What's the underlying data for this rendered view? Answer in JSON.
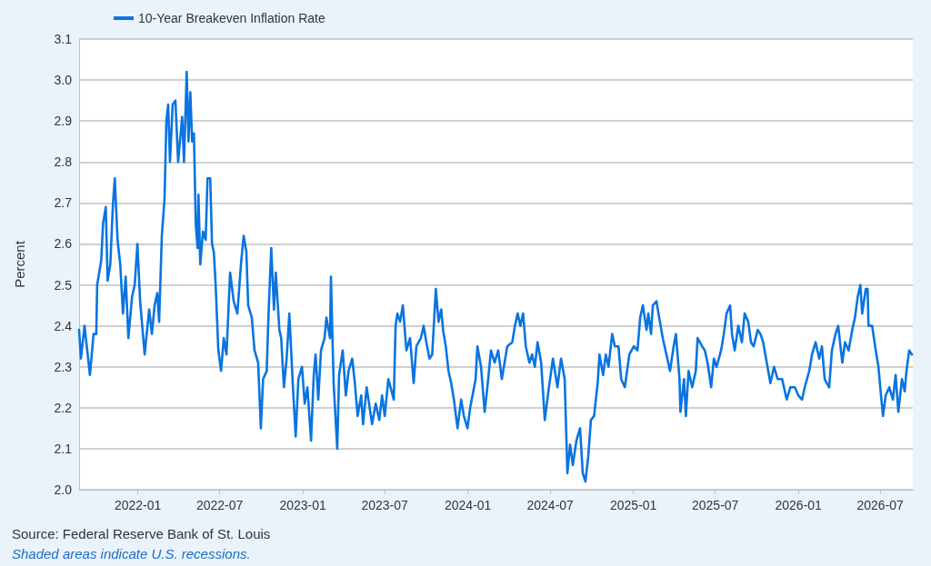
{
  "chart_data": {
    "type": "line",
    "ylabel": "Percent",
    "legend": "top left",
    "grid": "y",
    "marker": "none",
    "line_style": "solid",
    "annotations": [
      "Source: Federal Reserve Bank of St. Louis",
      "Shaded areas indicate U.S. recessions."
    ],
    "xlim": [
      "2021-08-24",
      "2026-09-11"
    ],
    "xticks": [
      "2022-01",
      "2022-07",
      "2023-01",
      "2023-07",
      "2024-01",
      "2024-07",
      "2025-01",
      "2025-07",
      "2026-01",
      "2026-07"
    ],
    "ylim": [
      2.0,
      3.1
    ],
    "yticks": [
      {
        "value": 2.0,
        "label": "2.0"
      },
      2.1,
      2.2,
      2.3,
      2.4,
      2.5,
      2.6,
      2.7,
      2.8,
      2.9,
      {
        "value": 3.0,
        "label": "3.0"
      },
      3.1
    ],
    "x": [
      "2021-08-24",
      "2021-08-28",
      "2021-09-05",
      "2021-09-17",
      "2021-09-25",
      "2021-10-01",
      "2021-10-03",
      "2021-10-12",
      "2021-10-16",
      "2021-10-22",
      "2021-10-26",
      "2021-11-01",
      "2021-11-07",
      "2021-11-11",
      "2021-11-17",
      "2021-11-23",
      "2021-11-29",
      "2021-12-05",
      "2021-12-11",
      "2021-12-19",
      "2021-12-25",
      "2021-12-31",
      "2022-01-06",
      "2022-01-16",
      "2022-01-26",
      "2022-02-01",
      "2022-02-07",
      "2022-02-13",
      "2022-02-17",
      "2022-02-23",
      "2022-03-01",
      "2022-03-05",
      "2022-03-09",
      "2022-03-13",
      "2022-03-19",
      "2022-03-25",
      "2022-03-31",
      "2022-04-09",
      "2022-04-13",
      "2022-04-19",
      "2022-04-23",
      "2022-04-27",
      "2022-05-01",
      "2022-05-05",
      "2022-05-09",
      "2022-05-13",
      "2022-05-15",
      "2022-05-19",
      "2022-05-25",
      "2022-05-31",
      "2022-06-04",
      "2022-06-10",
      "2022-06-14",
      "2022-06-18",
      "2022-06-22",
      "2022-06-28",
      "2022-07-04",
      "2022-07-10",
      "2022-07-16",
      "2022-07-24",
      "2022-08-01",
      "2022-08-09",
      "2022-08-17",
      "2022-08-23",
      "2022-08-29",
      "2022-09-02",
      "2022-09-10",
      "2022-09-16",
      "2022-09-24",
      "2022-09-30",
      "2022-10-05",
      "2022-10-13",
      "2022-10-17",
      "2022-10-23",
      "2022-10-29",
      "2022-11-02",
      "2022-11-10",
      "2022-11-14",
      "2022-11-20",
      "2022-11-26",
      "2022-12-02",
      "2022-12-10",
      "2022-12-16",
      "2022-12-22",
      "2022-12-30",
      "2023-01-05",
      "2023-01-11",
      "2023-01-19",
      "2023-01-25",
      "2023-01-29",
      "2023-02-04",
      "2023-02-10",
      "2023-02-18",
      "2023-02-22",
      "2023-03-02",
      "2023-03-04",
      "2023-03-10",
      "2023-03-18",
      "2023-03-22",
      "2023-03-30",
      "2023-04-06",
      "2023-04-12",
      "2023-04-20",
      "2023-04-26",
      "2023-05-02",
      "2023-05-10",
      "2023-05-14",
      "2023-05-22",
      "2023-06-03",
      "2023-06-11",
      "2023-06-19",
      "2023-06-25",
      "2023-07-01",
      "2023-07-09",
      "2023-07-21",
      "2023-07-25",
      "2023-07-29",
      "2023-08-04",
      "2023-08-10",
      "2023-08-18",
      "2023-08-26",
      "2023-09-03",
      "2023-09-09",
      "2023-09-19",
      "2023-09-25",
      "2023-10-01",
      "2023-10-08",
      "2023-10-14",
      "2023-10-22",
      "2023-10-28",
      "2023-11-03",
      "2023-11-07",
      "2023-11-13",
      "2023-11-19",
      "2023-11-25",
      "2023-12-01",
      "2023-12-09",
      "2023-12-17",
      "2023-12-23",
      "2023-12-31",
      "2024-01-06",
      "2024-01-18",
      "2024-01-22",
      "2024-01-30",
      "2024-02-07",
      "2024-02-13",
      "2024-02-21",
      "2024-02-29",
      "2024-03-08",
      "2024-03-16",
      "2024-03-22",
      "2024-03-28",
      "2024-04-08",
      "2024-04-14",
      "2024-04-20",
      "2024-04-26",
      "2024-05-02",
      "2024-05-08",
      "2024-05-16",
      "2024-05-22",
      "2024-05-28",
      "2024-06-03",
      "2024-06-11",
      "2024-06-19",
      "2024-06-27",
      "2024-07-07",
      "2024-07-17",
      "2024-07-25",
      "2024-08-02",
      "2024-08-08",
      "2024-08-14",
      "2024-08-20",
      "2024-08-28",
      "2024-09-05",
      "2024-09-11",
      "2024-09-17",
      "2024-09-23",
      "2024-09-29",
      "2024-10-06",
      "2024-10-14",
      "2024-10-18",
      "2024-10-26",
      "2024-11-01",
      "2024-11-07",
      "2024-11-15",
      "2024-11-21",
      "2024-11-29",
      "2024-12-05",
      "2024-12-13",
      "2024-12-23",
      "2025-01-02",
      "2025-01-10",
      "2025-01-16",
      "2025-01-22",
      "2025-01-30",
      "2025-02-03",
      "2025-02-09",
      "2025-02-13",
      "2025-02-21",
      "2025-02-27",
      "2025-03-07",
      "2025-03-15",
      "2025-03-23",
      "2025-03-31",
      "2025-04-05",
      "2025-04-13",
      "2025-04-15",
      "2025-04-23",
      "2025-04-27",
      "2025-05-03",
      "2025-05-11",
      "2025-05-19",
      "2025-05-23",
      "2025-06-02",
      "2025-06-08",
      "2025-06-14",
      "2025-06-22",
      "2025-06-28",
      "2025-07-04",
      "2025-07-14",
      "2025-07-20",
      "2025-07-26",
      "2025-08-03",
      "2025-08-07",
      "2025-08-13",
      "2025-08-21",
      "2025-08-29",
      "2025-09-04",
      "2025-09-12",
      "2025-09-18",
      "2025-09-24",
      "2025-10-03",
      "2025-10-09",
      "2025-10-15",
      "2025-10-23",
      "2025-10-31",
      "2025-11-08",
      "2025-11-16",
      "2025-11-26",
      "2025-12-06",
      "2025-12-14",
      "2025-12-24",
      "2026-01-01",
      "2026-01-09",
      "2026-01-15",
      "2026-01-25",
      "2026-01-31",
      "2026-02-08",
      "2026-02-16",
      "2026-02-22",
      "2026-02-28",
      "2026-03-10",
      "2026-03-16",
      "2026-03-24",
      "2026-03-30",
      "2026-04-08",
      "2026-04-14",
      "2026-04-22",
      "2026-04-30",
      "2026-05-06",
      "2026-05-12",
      "2026-05-18",
      "2026-05-22",
      "2026-05-30",
      "2026-06-03",
      "2026-06-05",
      "2026-06-13",
      "2026-06-21",
      "2026-06-27",
      "2026-07-01",
      "2026-07-07",
      "2026-07-13",
      "2026-07-21",
      "2026-07-29",
      "2026-08-04",
      "2026-08-10",
      "2026-08-18",
      "2026-08-24",
      "2026-08-28",
      "2026-09-03",
      "2026-09-09"
    ],
    "series": [
      {
        "name": "10-Year Breakeven Inflation Rate",
        "color": "#0a74e0",
        "values": [
          2.39,
          2.32,
          2.4,
          2.28,
          2.38,
          2.38,
          2.5,
          2.56,
          2.65,
          2.69,
          2.51,
          2.55,
          2.7,
          2.76,
          2.61,
          2.55,
          2.43,
          2.52,
          2.37,
          2.47,
          2.5,
          2.6,
          2.46,
          2.33,
          2.44,
          2.38,
          2.45,
          2.48,
          2.41,
          2.62,
          2.71,
          2.9,
          2.94,
          2.8,
          2.94,
          2.95,
          2.8,
          2.91,
          2.8,
          3.02,
          2.85,
          2.97,
          2.85,
          2.87,
          2.65,
          2.59,
          2.72,
          2.55,
          2.63,
          2.61,
          2.76,
          2.76,
          2.6,
          2.58,
          2.5,
          2.34,
          2.29,
          2.37,
          2.33,
          2.53,
          2.46,
          2.43,
          2.55,
          2.62,
          2.58,
          2.45,
          2.42,
          2.34,
          2.31,
          2.15,
          2.27,
          2.29,
          2.43,
          2.59,
          2.44,
          2.53,
          2.39,
          2.37,
          2.25,
          2.32,
          2.43,
          2.25,
          2.13,
          2.27,
          2.3,
          2.21,
          2.25,
          2.12,
          2.28,
          2.33,
          2.22,
          2.34,
          2.37,
          2.42,
          2.37,
          2.52,
          2.26,
          2.1,
          2.28,
          2.34,
          2.23,
          2.29,
          2.32,
          2.26,
          2.18,
          2.23,
          2.16,
          2.25,
          2.16,
          2.21,
          2.17,
          2.23,
          2.18,
          2.27,
          2.22,
          2.4,
          2.43,
          2.41,
          2.45,
          2.34,
          2.37,
          2.26,
          2.35,
          2.37,
          2.4,
          2.36,
          2.32,
          2.33,
          2.49,
          2.41,
          2.44,
          2.39,
          2.35,
          2.29,
          2.26,
          2.22,
          2.15,
          2.22,
          2.18,
          2.15,
          2.2,
          2.27,
          2.35,
          2.3,
          2.19,
          2.25,
          2.34,
          2.31,
          2.34,
          2.27,
          2.31,
          2.35,
          2.36,
          2.4,
          2.43,
          2.4,
          2.43,
          2.35,
          2.31,
          2.33,
          2.3,
          2.36,
          2.31,
          2.17,
          2.24,
          2.32,
          2.25,
          2.32,
          2.27,
          2.04,
          2.11,
          2.06,
          2.12,
          2.15,
          2.04,
          2.02,
          2.08,
          2.17,
          2.18,
          2.26,
          2.33,
          2.28,
          2.33,
          2.3,
          2.38,
          2.35,
          2.35,
          2.27,
          2.25,
          2.33,
          2.35,
          2.34,
          2.42,
          2.45,
          2.39,
          2.43,
          2.38,
          2.45,
          2.46,
          2.42,
          2.37,
          2.33,
          2.29,
          2.35,
          2.38,
          2.27,
          2.19,
          2.27,
          2.18,
          2.29,
          2.25,
          2.29,
          2.37,
          2.35,
          2.34,
          2.31,
          2.25,
          2.32,
          2.3,
          2.34,
          2.38,
          2.43,
          2.45,
          2.38,
          2.34,
          2.4,
          2.36,
          2.43,
          2.41,
          2.36,
          2.35,
          2.39,
          2.38,
          2.36,
          2.31,
          2.26,
          2.3,
          2.27,
          2.27,
          2.22,
          2.25,
          2.25,
          2.23,
          2.22,
          2.25,
          2.29,
          2.33,
          2.36,
          2.32,
          2.35,
          2.27,
          2.25,
          2.34,
          2.38,
          2.4,
          2.31,
          2.36,
          2.34,
          2.39,
          2.42,
          2.47,
          2.5,
          2.43,
          2.49,
          2.49,
          2.4,
          2.4,
          2.34,
          2.3,
          2.25,
          2.18,
          2.23,
          2.25,
          2.22,
          2.28,
          2.19,
          2.27,
          2.24,
          2.29,
          2.34,
          2.33
        ]
      }
    ]
  }
}
